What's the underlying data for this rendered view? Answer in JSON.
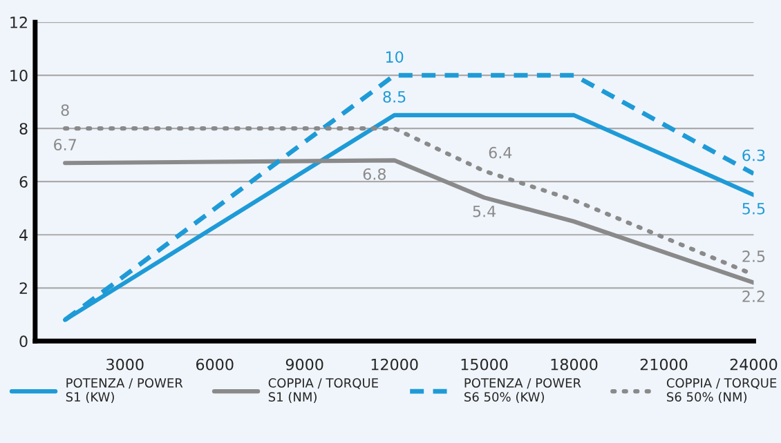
{
  "chart_data": {
    "type": "line",
    "x": [
      1000,
      12000,
      15000,
      18000,
      24000
    ],
    "series": [
      {
        "name": "POTENZA / POWER\nS1 (KW)",
        "color": "#1e9bd7",
        "line_style": "solid",
        "values": [
          0.8,
          8.5,
          8.5,
          8.5,
          5.5
        ],
        "value_labels": [
          null,
          "8.5",
          null,
          null,
          "5.5"
        ]
      },
      {
        "name": "COPPIA / TORQUE\nS1 (NM)",
        "color": "#8a8a8a",
        "line_style": "solid",
        "values": [
          6.7,
          6.8,
          5.4,
          4.5,
          2.2
        ],
        "value_labels": [
          "6.7",
          "6.8",
          "5.4",
          null,
          "2.2"
        ]
      },
      {
        "name": "POTENZA / POWER\nS6 50% (KW)",
        "color": "#1e9bd7",
        "line_style": "dashed",
        "values": [
          0.8,
          10,
          10,
          10,
          6.3
        ],
        "value_labels": [
          null,
          "10",
          null,
          null,
          "6.3"
        ]
      },
      {
        "name": "COPPIA / TORQUE\nS6 50% (NM)",
        "color": "#8a8a8a",
        "line_style": "dotted",
        "values": [
          8,
          8,
          6.4,
          5.3,
          2.5
        ],
        "value_labels": [
          "8",
          null,
          "6.4",
          null,
          "2.5"
        ]
      }
    ],
    "xlim": [
      0,
      24000
    ],
    "xticks": [
      3000,
      6000,
      9000,
      12000,
      15000,
      18000,
      21000,
      24000
    ],
    "ylim": [
      0,
      12
    ],
    "yticks": [
      0,
      2,
      4,
      6,
      8,
      10,
      12
    ],
    "grid": "y",
    "legend": "bottom",
    "marker": "none"
  }
}
